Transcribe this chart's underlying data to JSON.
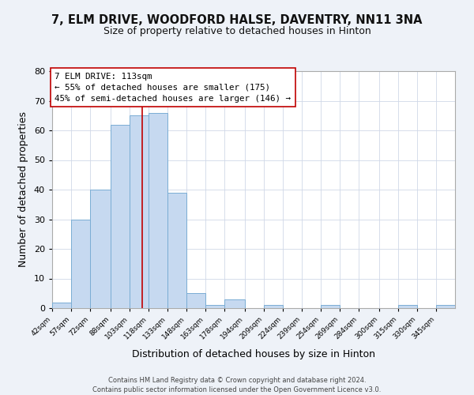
{
  "title1": "7, ELM DRIVE, WOODFORD HALSE, DAVENTRY, NN11 3NA",
  "title2": "Size of property relative to detached houses in Hinton",
  "xlabel": "Distribution of detached houses by size in Hinton",
  "ylabel": "Number of detached properties",
  "bar_color": "#c6d9f0",
  "bar_edge_color": "#7aadd4",
  "property_line_x": 113,
  "property_line_color": "#c00000",
  "annotation_title": "7 ELM DRIVE: 113sqm",
  "annotation_line1": "← 55% of detached houses are smaller (175)",
  "annotation_line2": "45% of semi-detached houses are larger (146) →",
  "bin_edges": [
    42,
    57,
    72,
    88,
    103,
    118,
    133,
    148,
    163,
    178,
    194,
    209,
    224,
    239,
    254,
    269,
    284,
    300,
    315,
    330,
    345
  ],
  "bin_counts": [
    2,
    30,
    40,
    62,
    65,
    66,
    39,
    5,
    1,
    3,
    0,
    1,
    0,
    0,
    1,
    0,
    0,
    0,
    1,
    0,
    1
  ],
  "xlim": [
    42,
    360
  ],
  "ylim": [
    0,
    80
  ],
  "yticks": [
    0,
    10,
    20,
    30,
    40,
    50,
    60,
    70,
    80
  ],
  "footer1": "Contains HM Land Registry data © Crown copyright and database right 2024.",
  "footer2": "Contains public sector information licensed under the Open Government Licence v3.0.",
  "background_color": "#eef2f8",
  "plot_bg_color": "#ffffff",
  "title1_fontsize": 10.5,
  "title2_fontsize": 9,
  "tick_labels": [
    "42sqm",
    "57sqm",
    "72sqm",
    "88sqm",
    "103sqm",
    "118sqm",
    "133sqm",
    "148sqm",
    "163sqm",
    "178sqm",
    "194sqm",
    "209sqm",
    "224sqm",
    "239sqm",
    "254sqm",
    "269sqm",
    "284sqm",
    "300sqm",
    "315sqm",
    "330sqm",
    "345sqm"
  ]
}
